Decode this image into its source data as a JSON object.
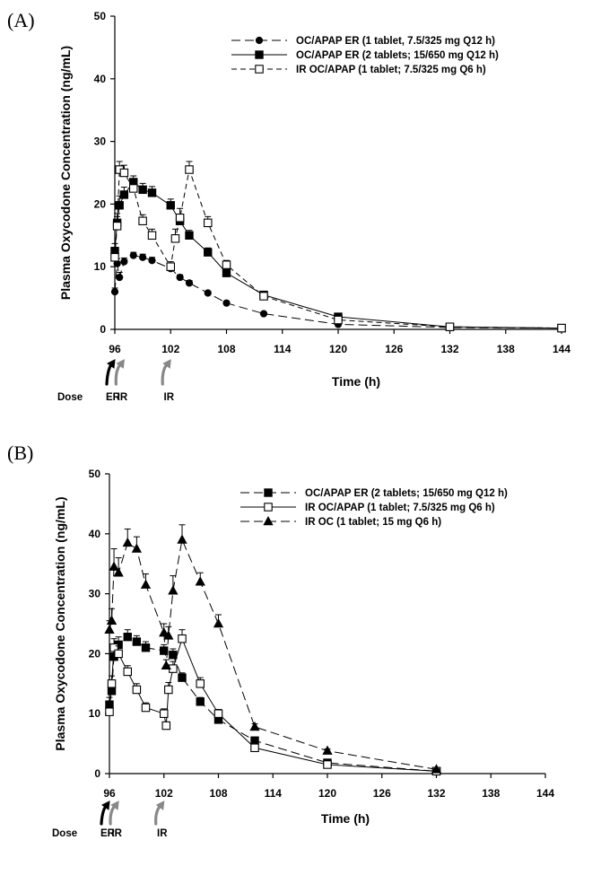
{
  "chart_data": [
    {
      "type": "line",
      "panel_label": "(A)",
      "xlabel": "Time (h)",
      "ylabel": "Plasma Oxycodone Concentration (ng/mL)",
      "xlim": [
        96,
        144
      ],
      "ylim": [
        0,
        50
      ],
      "xticks": [
        96,
        102,
        108,
        114,
        120,
        126,
        132,
        138,
        144
      ],
      "yticks": [
        0,
        10,
        20,
        30,
        40,
        50
      ],
      "legend_position": "top-right",
      "dose_annotations": {
        "label": "Dose",
        "arrows": [
          {
            "text": "ER",
            "x": 96,
            "color": "#000000"
          },
          {
            "text": "IR",
            "x": 97,
            "color": "#888888"
          },
          {
            "text": "IR",
            "x": 102,
            "color": "#888888"
          }
        ]
      },
      "series": [
        {
          "name": "OC/APAP ER (1 tablet, 7.5/325 mg Q12 h)",
          "marker": "circle-filled",
          "line": "dash-long",
          "x": [
            96,
            96.25,
            96.5,
            97,
            98,
            99,
            100,
            102,
            103,
            104,
            106,
            108,
            112,
            120,
            132,
            144
          ],
          "y": [
            6,
            10.5,
            8.3,
            10.8,
            11.8,
            11.5,
            11.0,
            9.7,
            8.3,
            7.4,
            5.8,
            4.2,
            2.5,
            0.8,
            0.3,
            0.2
          ],
          "err": [
            0.6,
            0.8,
            0.8,
            0.6,
            0.5,
            0.5,
            0.5,
            0.5,
            0.4,
            0.4,
            0.3,
            0.3,
            0.2,
            0.1,
            0.05,
            0.05
          ]
        },
        {
          "name": "OC/APAP ER (2 tablets; 15/650 mg Q12 h)",
          "marker": "square-filled",
          "line": "solid",
          "x": [
            96,
            96.25,
            96.5,
            97,
            98,
            99,
            100,
            102,
            103,
            104,
            106,
            108,
            112,
            120,
            132,
            144
          ],
          "y": [
            12.5,
            17,
            19.8,
            21.5,
            23.5,
            22.3,
            21.8,
            19.8,
            17.3,
            15.0,
            12.3,
            9.0,
            5.5,
            2.0,
            0.4,
            0.2
          ],
          "err": [
            1.2,
            1.5,
            1.5,
            1.2,
            1.0,
            1.0,
            1.0,
            1.0,
            0.9,
            0.8,
            0.7,
            0.5,
            0.4,
            0.2,
            0.05,
            0.05
          ]
        },
        {
          "name": "IR OC/APAP (1 tablet; 7.5/325 mg Q6 h)",
          "marker": "square-open",
          "line": "dash-short",
          "x": [
            96,
            96.25,
            96.5,
            97,
            98,
            99,
            100,
            102,
            102.5,
            103,
            104,
            106,
            108,
            112,
            120,
            132,
            144
          ],
          "y": [
            11.5,
            16.5,
            25.5,
            25.0,
            22.5,
            17.3,
            15.0,
            10.0,
            14.5,
            17.8,
            25.5,
            17.0,
            10.3,
            5.3,
            1.5,
            0.4,
            0.2
          ],
          "err": [
            1.0,
            1.5,
            1.3,
            1.2,
            1.2,
            1.0,
            1.0,
            0.8,
            1.5,
            1.5,
            1.3,
            1.0,
            0.7,
            0.4,
            0.2,
            0.05,
            0.05
          ]
        }
      ]
    },
    {
      "type": "line",
      "panel_label": "(B)",
      "xlabel": "Time (h)",
      "ylabel": "Plasma Oxycodone Concentration (ng/mL)",
      "xlim": [
        96,
        144
      ],
      "ylim": [
        0,
        50
      ],
      "xticks": [
        96,
        102,
        108,
        114,
        120,
        126,
        132,
        138,
        144
      ],
      "yticks": [
        0,
        10,
        20,
        30,
        40,
        50
      ],
      "legend_position": "top-right",
      "dose_annotations": {
        "label": "Dose",
        "arrows": [
          {
            "text": "ER",
            "x": 96,
            "color": "#000000"
          },
          {
            "text": "IR",
            "x": 97,
            "color": "#888888"
          },
          {
            "text": "IR",
            "x": 102,
            "color": "#888888"
          }
        ]
      },
      "series": [
        {
          "name": "OC/APAP ER (2 tablets; 15/650 mg Q12 h)",
          "marker": "square-filled",
          "line": "dash-long",
          "x": [
            96,
            96.25,
            96.5,
            97,
            98,
            99,
            100,
            102,
            103,
            104,
            106,
            108,
            112,
            120,
            132
          ],
          "y": [
            11.5,
            13.8,
            19.5,
            21.5,
            22.8,
            22.0,
            21.0,
            20.5,
            19.8,
            16.0,
            12.0,
            9.0,
            5.5,
            1.8,
            0.4
          ],
          "err": [
            1.2,
            1.5,
            1.5,
            1.3,
            1.2,
            1.0,
            1.0,
            1.0,
            1.0,
            0.8,
            0.7,
            0.5,
            0.4,
            0.2,
            0.05
          ]
        },
        {
          "name": "IR OC/APAP (1 tablet; 7.5/325 mg Q6 h)",
          "marker": "square-open",
          "line": "solid",
          "x": [
            96,
            96.25,
            96.5,
            97,
            98,
            99,
            100,
            102,
            102.25,
            102.5,
            103,
            104,
            106,
            108,
            112,
            120,
            132
          ],
          "y": [
            10.3,
            15.0,
            21.0,
            20.0,
            17.0,
            14.0,
            11.0,
            10.0,
            8.0,
            14.0,
            17.5,
            22.5,
            15.0,
            10.0,
            4.3,
            1.5,
            0.4
          ],
          "err": [
            0.8,
            1.3,
            1.5,
            1.3,
            1.0,
            1.0,
            0.8,
            0.8,
            0.6,
            1.2,
            1.2,
            1.5,
            1.0,
            0.7,
            0.4,
            0.2,
            0.05
          ]
        },
        {
          "name": "IR OC (1 tablet; 15 mg Q6 h)",
          "marker": "triangle-filled",
          "line": "dash-long",
          "x": [
            96,
            96.25,
            96.5,
            97,
            98,
            99,
            100,
            102,
            102.25,
            102.5,
            103,
            104,
            106,
            108,
            112,
            120,
            132
          ],
          "y": [
            24.0,
            25.5,
            34.5,
            33.5,
            38.5,
            37.5,
            31.5,
            23.5,
            18.0,
            23.0,
            30.5,
            39.0,
            32.0,
            25.0,
            7.8,
            3.8,
            0.7
          ],
          "err": [
            1.5,
            2.0,
            3.0,
            2.5,
            2.3,
            2.0,
            1.8,
            1.5,
            1.0,
            1.5,
            2.5,
            2.5,
            1.5,
            1.5,
            0.5,
            0.3,
            0.1
          ]
        }
      ]
    }
  ]
}
